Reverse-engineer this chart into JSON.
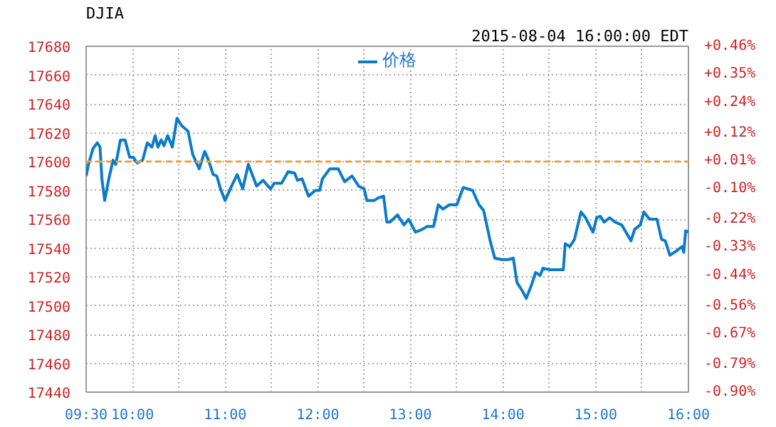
{
  "chart_data": {
    "type": "line",
    "title": "DJIA",
    "subtitle": "2015-08-04 16:00:00 EDT",
    "x": [
      9.5,
      9.525,
      9.574,
      9.62,
      9.65,
      9.67,
      9.7,
      9.745,
      9.79,
      9.82,
      9.87,
      9.92,
      9.97,
      10.01,
      10.05,
      10.11,
      10.16,
      10.21,
      10.245,
      10.275,
      10.31,
      10.34,
      10.38,
      10.43,
      10.48,
      10.53,
      10.6,
      10.65,
      10.72,
      10.78,
      10.82,
      10.87,
      10.91,
      10.95,
      11.0,
      11.07,
      11.13,
      11.19,
      11.25,
      11.34,
      11.41,
      11.49,
      11.53,
      11.61,
      11.68,
      11.75,
      11.78,
      11.83,
      11.9,
      11.975,
      12.02,
      12.05,
      12.13,
      12.22,
      12.29,
      12.37,
      12.44,
      12.5,
      12.53,
      12.61,
      12.66,
      12.71,
      12.745,
      12.78,
      12.86,
      12.93,
      12.98,
      13.055,
      13.13,
      13.18,
      13.25,
      13.3,
      13.35,
      13.42,
      13.5,
      13.57,
      13.67,
      13.74,
      13.79,
      13.86,
      13.91,
      13.985,
      14.06,
      14.11,
      14.15,
      14.21,
      14.25,
      14.31,
      14.35,
      14.4,
      14.43,
      14.5,
      14.58,
      14.65,
      14.67,
      14.72,
      14.77,
      14.84,
      14.89,
      14.97,
      15.01,
      15.05,
      15.09,
      15.15,
      15.21,
      15.28,
      15.38,
      15.42,
      15.48,
      15.52,
      15.58,
      15.66,
      15.71,
      15.75,
      15.8,
      15.87,
      15.93,
      15.95,
      15.97,
      16.0
    ],
    "series": [
      {
        "name": "价格",
        "color": "#0a7bc9",
        "values": [
          17590,
          17598,
          17609,
          17613,
          17610,
          17588,
          17573,
          17588,
          17601,
          17598,
          17615,
          17615,
          17603,
          17603,
          17599,
          17601,
          17613,
          17610,
          17618,
          17610,
          17615,
          17611,
          17618,
          17610,
          17630,
          17625,
          17621,
          17605,
          17595,
          17607,
          17601,
          17591,
          17590,
          17581,
          17573,
          17583,
          17591,
          17581,
          17598,
          17583,
          17587,
          17581,
          17585,
          17585,
          17593,
          17592,
          17587,
          17588,
          17576,
          17580,
          17580,
          17588,
          17595,
          17595,
          17586,
          17590,
          17583,
          17581,
          17573,
          17573,
          17575,
          17576,
          17558,
          17558,
          17563,
          17556,
          17560,
          17551,
          17553,
          17555,
          17555,
          17570,
          17567,
          17570,
          17570,
          17582,
          17580,
          17570,
          17566,
          17545,
          17533,
          17532,
          17532,
          17533,
          17516,
          17510,
          17505,
          17515,
          17523,
          17521,
          17526,
          17525,
          17525,
          17525,
          17543,
          17541,
          17546,
          17565,
          17561,
          17551,
          17561,
          17562,
          17558,
          17561,
          17558,
          17556,
          17545,
          17553,
          17556,
          17565,
          17560,
          17560,
          17546,
          17545,
          17535,
          17538,
          17541,
          17537,
          17552,
          17551
        ]
      }
    ],
    "xlim": [
      9.5,
      16
    ],
    "xticks": [
      {
        "value": 9.5,
        "label": "09:30"
      },
      {
        "value": 10,
        "label": "10:00"
      },
      {
        "value": 10.5,
        "label": null
      },
      {
        "value": 11,
        "label": "11:00"
      },
      {
        "value": 11.5,
        "label": null
      },
      {
        "value": 12,
        "label": "12:00"
      },
      {
        "value": 12.5,
        "label": null
      },
      {
        "value": 13,
        "label": "13:00"
      },
      {
        "value": 13.5,
        "label": null
      },
      {
        "value": 14,
        "label": "14:00"
      },
      {
        "value": 14.5,
        "label": null
      },
      {
        "value": 15,
        "label": "15:00"
      },
      {
        "value": 15.5,
        "label": null
      },
      {
        "value": 16,
        "label": "16:00"
      }
    ],
    "ylim": [
      17440,
      17680
    ],
    "yticks": [
      17440,
      17460,
      17480,
      17500,
      17520,
      17540,
      17560,
      17580,
      17600,
      17620,
      17640,
      17660,
      17680
    ],
    "y2lim": [
      -0.9,
      0.46
    ],
    "y2ticks": [
      {
        "value": -0.9,
        "label": "-0.90%"
      },
      {
        "value": -0.79,
        "label": "-0.79%"
      },
      {
        "value": -0.67,
        "label": "-0.67%"
      },
      {
        "value": -0.56,
        "label": "-0.56%"
      },
      {
        "value": -0.44,
        "label": "-0.44%"
      },
      {
        "value": -0.33,
        "label": "-0.33%"
      },
      {
        "value": -0.22,
        "label": "-0.22%"
      },
      {
        "value": -0.1,
        "label": "-0.10%"
      },
      {
        "value": 0.01,
        "label": "+0.01%"
      },
      {
        "value": 0.12,
        "label": "+0.12%"
      },
      {
        "value": 0.24,
        "label": "+0.24%"
      },
      {
        "value": 0.35,
        "label": "+0.35%"
      },
      {
        "value": 0.46,
        "label": "+0.46%"
      }
    ],
    "ref_lines": [
      {
        "axis": "y",
        "value": 17600,
        "color": "#f0a040",
        "line_style": "dashed"
      }
    ],
    "grid": true,
    "legend": "top",
    "marker": "none",
    "line_style": "solid"
  }
}
